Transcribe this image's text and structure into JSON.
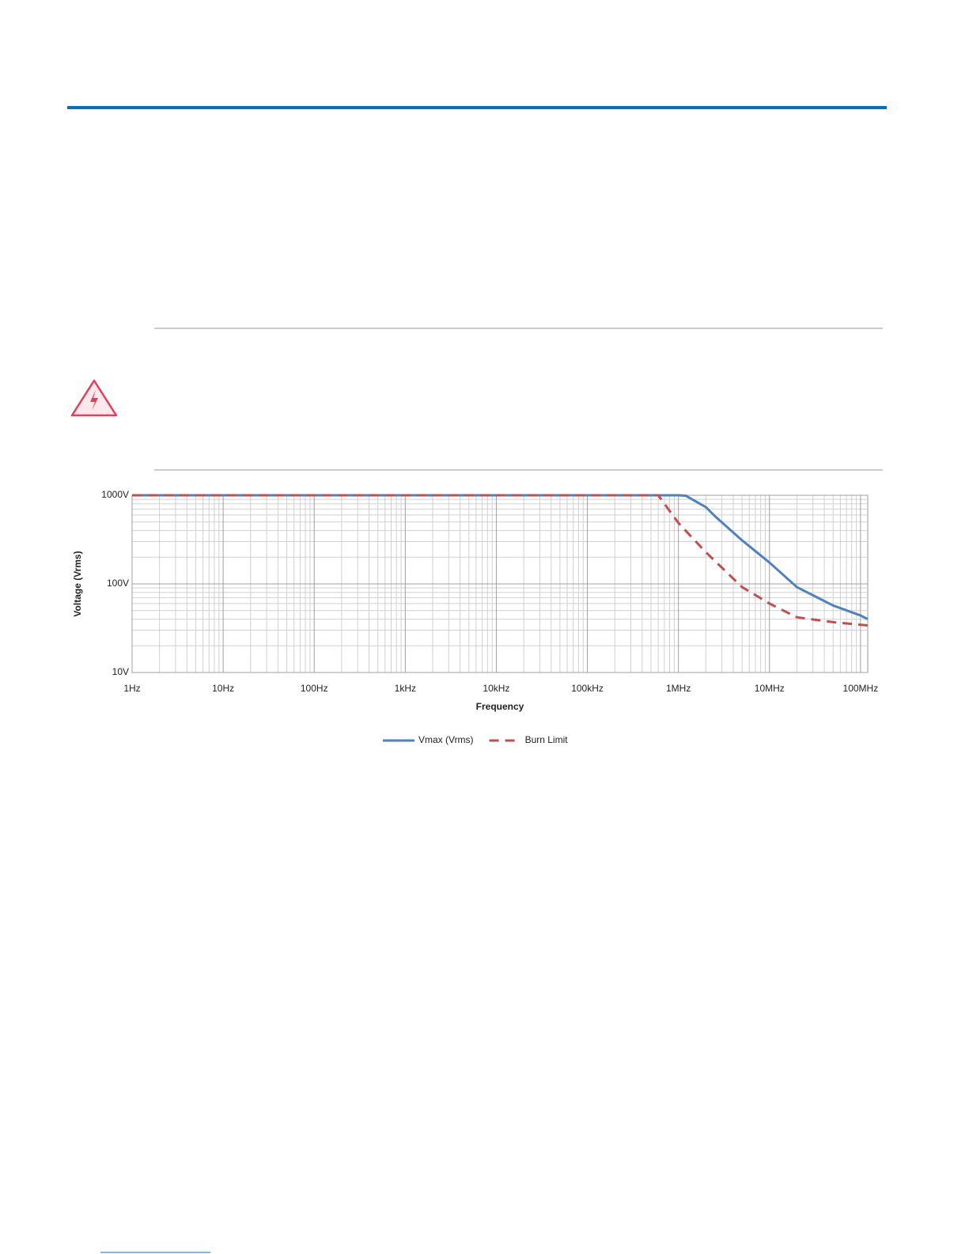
{
  "chart_data": {
    "type": "line",
    "y_label": "Voltage (Vrms)",
    "x_label": "Frequency",
    "xscale": "log",
    "yscale": "log",
    "grid": true,
    "minor_grid": true,
    "legend": "bottom",
    "xlim": [
      1,
      120000000
    ],
    "ylim": [
      10,
      1000
    ],
    "xticks": [
      {
        "value": 1,
        "label": "1Hz"
      },
      {
        "value": 10,
        "label": "10Hz"
      },
      {
        "value": 100,
        "label": "100Hz"
      },
      {
        "value": 1000,
        "label": "1kHz"
      },
      {
        "value": 10000,
        "label": "10kHz"
      },
      {
        "value": 100000,
        "label": "100kHz"
      },
      {
        "value": 1000000,
        "label": "1MHz"
      },
      {
        "value": 10000000,
        "label": "10MHz"
      },
      {
        "value": 100000000,
        "label": "100MHz"
      }
    ],
    "yticks": [
      {
        "value": 10,
        "label": "10V"
      },
      {
        "value": 100,
        "label": "100V"
      },
      {
        "value": 1000,
        "label": "1000V"
      }
    ],
    "series": [
      {
        "name": "Vmax (Vrms)",
        "color": "#4f81bd",
        "dash": false,
        "x": [
          1,
          1000000,
          1200000,
          2000000,
          2500000,
          5000000,
          10000000,
          20000000,
          50000000,
          100000000,
          120000000
        ],
        "values": [
          1000,
          1000,
          990,
          735,
          585,
          310,
          174,
          92,
          57,
          44,
          40
        ]
      },
      {
        "name": "Burn Limit",
        "color": "#c0504d",
        "dash": true,
        "x": [
          1,
          600000,
          1000000,
          2000000,
          5000000,
          10000000,
          20000000,
          50000000,
          120000000
        ],
        "values": [
          1000,
          1000,
          487,
          228,
          92,
          60,
          42,
          37,
          34
        ]
      }
    ]
  }
}
